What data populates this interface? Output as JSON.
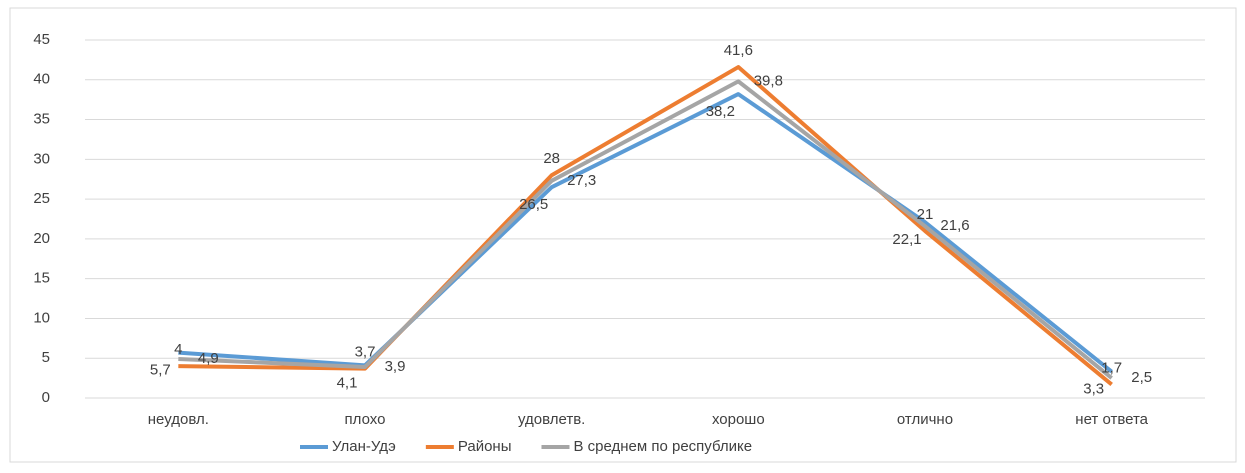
{
  "chart_data": {
    "type": "line",
    "categories": [
      "неудовл.",
      "плохо",
      "удовлетв.",
      "хорошо",
      "отлично",
      "нет ответа"
    ],
    "series": [
      {
        "name": "Улан-Удэ",
        "color": "#5b9bd5",
        "values": [
          5.7,
          4.1,
          26.5,
          38.2,
          22.1,
          3.3
        ],
        "value_labels": [
          "5,7",
          "4,1",
          "26,5",
          "38,2",
          "22,1",
          "3,3"
        ]
      },
      {
        "name": "Районы",
        "color": "#ed7d31",
        "values": [
          4,
          3.7,
          28,
          41.6,
          21,
          1.7
        ],
        "value_labels": [
          "4",
          "3,7",
          "28",
          "41,6",
          "21",
          "1,7"
        ]
      },
      {
        "name": "В среднем по республике",
        "color": "#a5a5a5",
        "values": [
          4.9,
          3.9,
          27.3,
          39.8,
          21.6,
          2.5
        ],
        "value_labels": [
          "4,9",
          "3,9",
          "27,3",
          "39,8",
          "21,6",
          "2,5"
        ]
      }
    ],
    "ylim": [
      0,
      45
    ],
    "yticks": [
      0,
      5,
      10,
      15,
      20,
      25,
      30,
      35,
      40,
      45
    ],
    "grid": true,
    "legend": "bottom"
  }
}
